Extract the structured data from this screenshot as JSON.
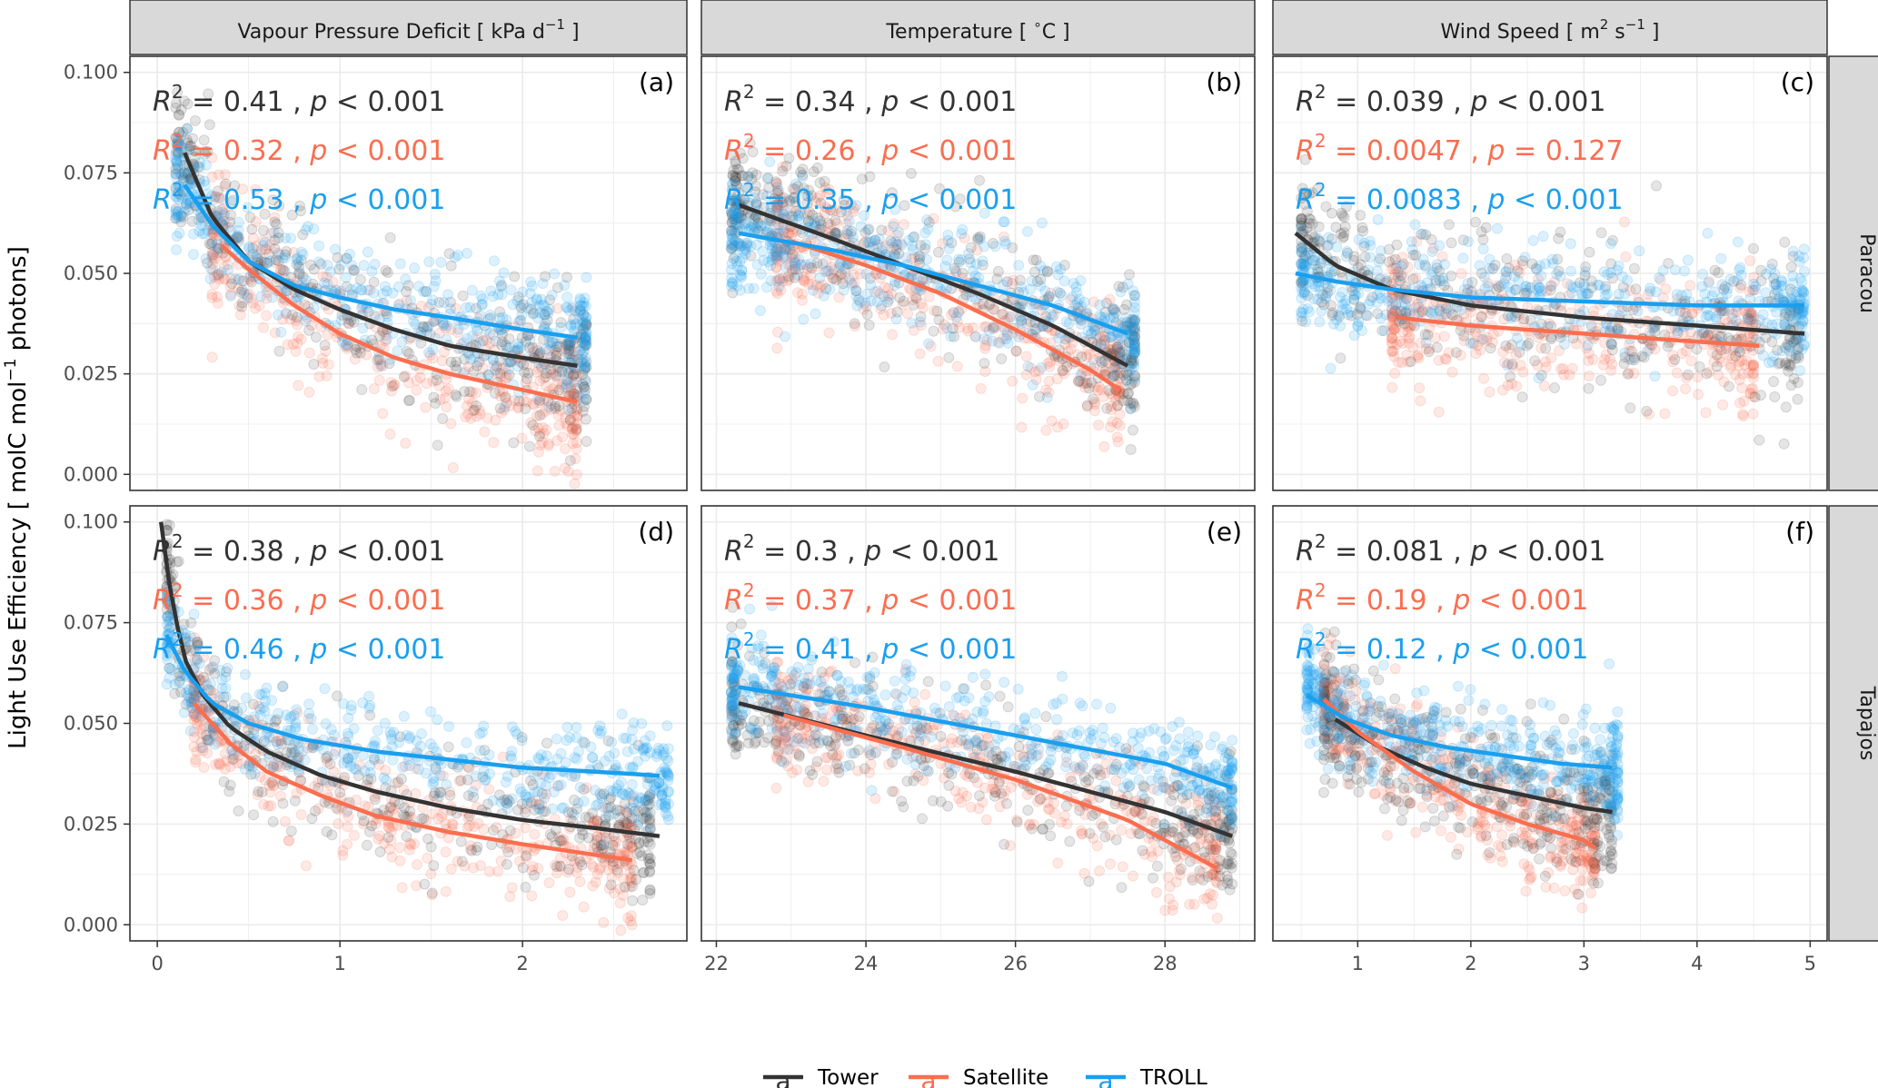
{
  "colors": {
    "Tower": "#333333",
    "Satellite": "#fa6e4f",
    "TROLL": "#1a9fef",
    "strip_bg": "#d9d9d9",
    "grid": "#ebebeb",
    "panel_border": "#333333"
  },
  "y_axis": {
    "label_prefix": "Light Use Efficiency [ molC mol",
    "label_sup": "−1",
    "label_suffix": " photons]",
    "range": [
      -0.004,
      0.104
    ],
    "ticks": [
      0.0,
      0.025,
      0.05,
      0.075,
      0.1
    ],
    "tick_labels": [
      "0.000",
      "0.025",
      "0.050",
      "0.075",
      "0.100"
    ]
  },
  "columns": [
    {
      "strip_pre": "Vapour Pressure Deficit [ kPa d",
      "strip_sup": "−1",
      "strip_post": " ]",
      "range": [
        -0.15,
        2.9
      ],
      "ticks": [
        0,
        1,
        2
      ],
      "tick_labels": [
        "0",
        "1",
        "2"
      ]
    },
    {
      "strip_pre": "Temperature [ ",
      "strip_sup": "∘",
      "strip_post": "C ]",
      "range": [
        21.8,
        29.2
      ],
      "ticks": [
        22,
        24,
        26,
        28
      ],
      "tick_labels": [
        "22",
        "24",
        "26",
        "28"
      ]
    },
    {
      "strip_pre": "Wind Speed [ m",
      "strip_sup": "2",
      "strip_post": " s",
      "strip_sup2": "−1",
      "strip_post2": " ]",
      "range": [
        0.25,
        5.15
      ],
      "ticks": [
        1,
        2,
        3,
        4,
        5
      ],
      "tick_labels": [
        "1",
        "2",
        "3",
        "4",
        "5"
      ]
    }
  ],
  "rows": [
    {
      "strip": "Paracou"
    },
    {
      "strip": "Tapajos"
    }
  ],
  "annotation_format": {
    "r2_label": "R",
    "r2_sup": "2",
    "p_label": "p"
  },
  "legend": {
    "key_glyph": "a",
    "items": [
      "Tower",
      "Satellite",
      "TROLL"
    ]
  },
  "chart_data": {
    "type": "scatter",
    "panels": [
      {
        "row": 0,
        "col": 0,
        "tag": "(a)",
        "stats": [
          {
            "series": "Tower",
            "r2": "0.41",
            "op": "<",
            "p": "0.001"
          },
          {
            "series": "Satellite",
            "r2": "0.32",
            "op": "<",
            "p": "0.001"
          },
          {
            "series": "TROLL",
            "r2": "0.53",
            "op": "<",
            "p": "0.001"
          }
        ],
        "curves": [
          {
            "series": "Tower",
            "x": [
              0.15,
              0.3,
              0.5,
              0.75,
              1.0,
              1.3,
              1.6,
              2.0,
              2.3
            ],
            "y": [
              0.08,
              0.064,
              0.053,
              0.046,
              0.041,
              0.036,
              0.032,
              0.029,
              0.027
            ]
          },
          {
            "series": "Satellite",
            "x": [
              0.35,
              0.5,
              0.75,
              1.0,
              1.3,
              1.6,
              2.0,
              2.3
            ],
            "y": [
              0.057,
              0.051,
              0.042,
              0.035,
              0.029,
              0.025,
              0.021,
              0.018
            ]
          },
          {
            "series": "TROLL",
            "x": [
              0.15,
              0.3,
              0.5,
              0.75,
              1.0,
              1.3,
              1.6,
              2.0,
              2.3
            ],
            "y": [
              0.072,
              0.062,
              0.053,
              0.047,
              0.044,
              0.041,
              0.039,
              0.036,
              0.034
            ]
          }
        ],
        "clouds": [
          {
            "series": "Tower",
            "x_range": [
              0.1,
              2.35
            ],
            "spread": 0.009
          },
          {
            "series": "Satellite",
            "x_range": [
              0.3,
              2.3
            ],
            "spread": 0.008
          },
          {
            "series": "TROLL",
            "x_range": [
              0.1,
              2.35
            ],
            "spread": 0.007
          }
        ]
      },
      {
        "row": 0,
        "col": 1,
        "tag": "(b)",
        "stats": [
          {
            "series": "Tower",
            "r2": "0.34",
            "op": "<",
            "p": "0.001"
          },
          {
            "series": "Satellite",
            "r2": "0.26",
            "op": "<",
            "p": "0.001"
          },
          {
            "series": "TROLL",
            "r2": "0.35",
            "op": "<",
            "p": "0.001"
          }
        ],
        "curves": [
          {
            "series": "Tower",
            "x": [
              22.3,
              23.5,
              24.5,
              25.5,
              26.5,
              27.5
            ],
            "y": [
              0.067,
              0.059,
              0.052,
              0.045,
              0.037,
              0.027
            ]
          },
          {
            "series": "Satellite",
            "x": [
              23.0,
              24.0,
              25.0,
              26.0,
              27.0,
              27.4
            ],
            "y": [
              0.058,
              0.052,
              0.045,
              0.036,
              0.026,
              0.021
            ]
          },
          {
            "series": "TROLL",
            "x": [
              22.3,
              23.5,
              24.5,
              25.5,
              26.5,
              27.5
            ],
            "y": [
              0.06,
              0.056,
              0.052,
              0.047,
              0.042,
              0.035
            ]
          }
        ],
        "clouds": [
          {
            "series": "Tower",
            "x_range": [
              22.2,
              27.6
            ],
            "spread": 0.009
          },
          {
            "series": "Satellite",
            "x_range": [
              22.8,
              27.4
            ],
            "spread": 0.008
          },
          {
            "series": "TROLL",
            "x_range": [
              22.2,
              27.6
            ],
            "spread": 0.007
          }
        ]
      },
      {
        "row": 0,
        "col": 2,
        "tag": "(c)",
        "stats": [
          {
            "series": "Tower",
            "r2": "0.039",
            "op": "<",
            "p": "0.001"
          },
          {
            "series": "Satellite",
            "r2": "0.0047",
            "op": "=",
            "p": "0.127"
          },
          {
            "series": "TROLL",
            "r2": "0.0083",
            "op": "<",
            "p": "0.001"
          }
        ],
        "curves": [
          {
            "series": "Tower",
            "x": [
              0.45,
              0.8,
              1.3,
              2.0,
              3.0,
              4.0,
              4.95
            ],
            "y": [
              0.06,
              0.052,
              0.046,
              0.042,
              0.039,
              0.037,
              0.035
            ]
          },
          {
            "series": "Satellite",
            "x": [
              1.35,
              2.0,
              3.0,
              4.0,
              4.55
            ],
            "y": [
              0.039,
              0.037,
              0.035,
              0.033,
              0.032
            ]
          },
          {
            "series": "TROLL",
            "x": [
              0.45,
              0.8,
              1.3,
              2.0,
              3.0,
              4.0,
              4.95
            ],
            "y": [
              0.05,
              0.048,
              0.046,
              0.044,
              0.043,
              0.042,
              0.042
            ]
          }
        ],
        "clouds": [
          {
            "series": "Tower",
            "x_range": [
              0.5,
              4.9
            ],
            "spread": 0.009
          },
          {
            "series": "Satellite",
            "x_range": [
              1.3,
              4.5
            ],
            "spread": 0.008
          },
          {
            "series": "TROLL",
            "x_range": [
              0.5,
              4.95
            ],
            "spread": 0.007
          }
        ]
      },
      {
        "row": 1,
        "col": 0,
        "tag": "(d)",
        "stats": [
          {
            "series": "Tower",
            "r2": "0.38",
            "op": "<",
            "p": "0.001"
          },
          {
            "series": "Satellite",
            "r2": "0.36",
            "op": "<",
            "p": "0.001"
          },
          {
            "series": "TROLL",
            "r2": "0.46",
            "op": "<",
            "p": "0.001"
          }
        ],
        "curves": [
          {
            "series": "Tower",
            "x": [
              0.02,
              0.08,
              0.15,
              0.25,
              0.4,
              0.6,
              0.9,
              1.2,
              1.6,
              2.0,
              2.4,
              2.75
            ],
            "y": [
              0.1,
              0.08,
              0.066,
              0.057,
              0.049,
              0.043,
              0.037,
              0.033,
              0.029,
              0.026,
              0.024,
              0.022
            ]
          },
          {
            "series": "Satellite",
            "x": [
              0.2,
              0.4,
              0.6,
              0.9,
              1.2,
              1.6,
              2.0,
              2.3,
              2.6
            ],
            "y": [
              0.055,
              0.045,
              0.038,
              0.032,
              0.027,
              0.023,
              0.02,
              0.018,
              0.016
            ]
          },
          {
            "series": "TROLL",
            "x": [
              0.05,
              0.15,
              0.3,
              0.5,
              0.8,
              1.2,
              1.6,
              2.0,
              2.4,
              2.75
            ],
            "y": [
              0.072,
              0.063,
              0.055,
              0.05,
              0.046,
              0.043,
              0.041,
              0.039,
              0.038,
              0.037
            ]
          }
        ],
        "clouds": [
          {
            "series": "Tower",
            "x_range": [
              0.05,
              2.7
            ],
            "spread": 0.008
          },
          {
            "series": "Satellite",
            "x_range": [
              0.2,
              2.6
            ],
            "spread": 0.007
          },
          {
            "series": "TROLL",
            "x_range": [
              0.05,
              2.8
            ],
            "spread": 0.006
          }
        ]
      },
      {
        "row": 1,
        "col": 1,
        "tag": "(e)",
        "stats": [
          {
            "series": "Tower",
            "r2": "0.3",
            "op": "<",
            "p": "0.001"
          },
          {
            "series": "Satellite",
            "r2": "0.37",
            "op": "<",
            "p": "0.001"
          },
          {
            "series": "TROLL",
            "r2": "0.41",
            "op": "<",
            "p": "0.001"
          }
        ],
        "curves": [
          {
            "series": "Tower",
            "x": [
              22.3,
              24.0,
              26.0,
              28.0,
              28.9
            ],
            "y": [
              0.055,
              0.047,
              0.038,
              0.028,
              0.022
            ]
          },
          {
            "series": "Satellite",
            "x": [
              22.9,
              24.5,
              26.0,
              27.5,
              28.7
            ],
            "y": [
              0.052,
              0.044,
              0.036,
              0.026,
              0.014
            ]
          },
          {
            "series": "TROLL",
            "x": [
              22.3,
              24.0,
              26.0,
              28.0,
              28.9
            ],
            "y": [
              0.059,
              0.054,
              0.047,
              0.04,
              0.034
            ]
          }
        ],
        "clouds": [
          {
            "series": "Tower",
            "x_range": [
              22.2,
              28.9
            ],
            "spread": 0.008
          },
          {
            "series": "Satellite",
            "x_range": [
              22.8,
              28.7
            ],
            "spread": 0.007
          },
          {
            "series": "TROLL",
            "x_range": [
              22.2,
              28.9
            ],
            "spread": 0.006
          }
        ]
      },
      {
        "row": 1,
        "col": 2,
        "tag": "(f)",
        "stats": [
          {
            "series": "Tower",
            "r2": "0.081",
            "op": "<",
            "p": "0.001"
          },
          {
            "series": "Satellite",
            "r2": "0.19",
            "op": "<",
            "p": "0.001"
          },
          {
            "series": "TROLL",
            "r2": "0.12",
            "op": "<",
            "p": "0.001"
          }
        ],
        "curves": [
          {
            "series": "Tower",
            "x": [
              0.8,
              1.2,
              1.6,
              2.0,
              2.5,
              3.0,
              3.25
            ],
            "y": [
              0.051,
              0.044,
              0.039,
              0.035,
              0.032,
              0.029,
              0.028
            ]
          },
          {
            "series": "Satellite",
            "x": [
              0.7,
              1.0,
              1.5,
              2.0,
              2.5,
              3.0,
              3.1
            ],
            "y": [
              0.056,
              0.048,
              0.038,
              0.03,
              0.025,
              0.021,
              0.019
            ]
          },
          {
            "series": "TROLL",
            "x": [
              0.55,
              0.9,
              1.3,
              1.8,
              2.3,
              2.8,
              3.25
            ],
            "y": [
              0.057,
              0.051,
              0.047,
              0.044,
              0.042,
              0.04,
              0.039
            ]
          }
        ],
        "clouds": [
          {
            "series": "Tower",
            "x_range": [
              0.7,
              3.25
            ],
            "spread": 0.008
          },
          {
            "series": "Satellite",
            "x_range": [
              0.7,
              3.1
            ],
            "spread": 0.007
          },
          {
            "series": "TROLL",
            "x_range": [
              0.55,
              3.3
            ],
            "spread": 0.006
          }
        ]
      }
    ]
  }
}
